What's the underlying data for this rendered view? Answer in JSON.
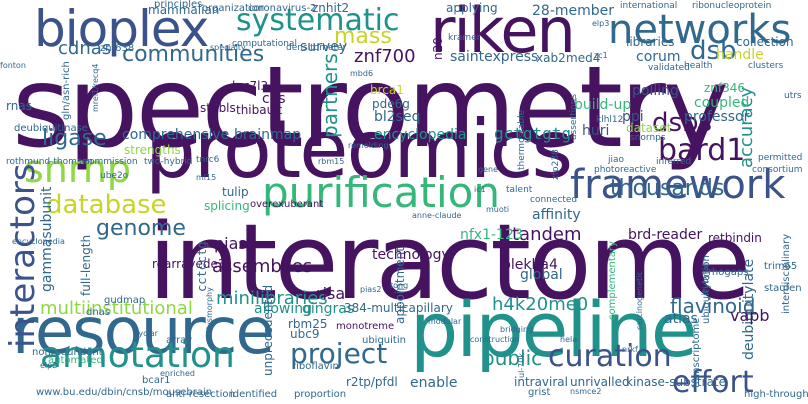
{
  "colors": {
    "purple": "#45135f",
    "indigo": "#3b528b",
    "blue": "#31688e",
    "teal": "#21918c",
    "green": "#35b779",
    "lime": "#8fd744",
    "yellow": "#c8d42a",
    "light": "#9bd69c"
  },
  "words": [
    {
      "text": "spectrometry"
    },
    {
      "text": "interactome"
    },
    {
      "text": "proteomics"
    },
    {
      "text": "pipeline"
    },
    {
      "text": "resource"
    },
    {
      "text": "riken"
    },
    {
      "text": "bioplex"
    },
    {
      "text": "purification"
    },
    {
      "text": "framework"
    },
    {
      "text": "networks"
    },
    {
      "text": "annotation"
    },
    {
      "text": "systematic"
    },
    {
      "text": "snrnp"
    },
    {
      "text": "curation"
    },
    {
      "text": "effort"
    },
    {
      "text": "interactors"
    },
    {
      "text": "bard1"
    },
    {
      "text": "dsbs"
    },
    {
      "text": "dsb"
    },
    {
      "text": "project"
    },
    {
      "text": "thousands"
    },
    {
      "text": "database"
    },
    {
      "text": "genome"
    },
    {
      "text": "communities"
    },
    {
      "text": "mass"
    },
    {
      "text": "accuracy"
    },
    {
      "text": "assemblies"
    },
    {
      "text": "ligase"
    },
    {
      "text": "cdnas"
    },
    {
      "text": "multiinstitutional"
    },
    {
      "text": "minilibraries"
    },
    {
      "text": "h4k20me0"
    },
    {
      "text": "flavinoid"
    },
    {
      "text": "public"
    },
    {
      "text": "deubiquitylate"
    },
    {
      "text": "tandem"
    },
    {
      "text": "technology"
    },
    {
      "text": "rearrayede3"
    },
    {
      "text": "pias3"
    },
    {
      "text": "partners"
    },
    {
      "text": "encyclopedia"
    },
    {
      "text": "gctgtgtg"
    },
    {
      "text": "bl2seq"
    },
    {
      "text": "znf700"
    },
    {
      "text": "survey"
    },
    {
      "text": "28-member"
    },
    {
      "text": "comprehensive"
    },
    {
      "text": "brainmap"
    },
    {
      "text": "build-up"
    },
    {
      "text": "huri"
    },
    {
      "text": "ppi"
    },
    {
      "text": "coupled"
    },
    {
      "text": "professor"
    },
    {
      "text": "dataset"
    },
    {
      "text": "polling"
    },
    {
      "text": "znf346"
    },
    {
      "text": "corum"
    },
    {
      "text": "handle"
    },
    {
      "text": "saintexpress"
    },
    {
      "text": "xab2"
    },
    {
      "text": "med4"
    },
    {
      "text": "libraries"
    },
    {
      "text": "collection"
    },
    {
      "text": "znhit2"
    },
    {
      "text": "applying"
    },
    {
      "text": "mammalian"
    },
    {
      "text": "cas"
    },
    {
      "text": "thibault"
    },
    {
      "text": "luc7l3"
    },
    {
      "text": "stubls"
    },
    {
      "text": "rnas"
    },
    {
      "text": "brca1"
    },
    {
      "text": "pde6g"
    },
    {
      "text": "gln/asn-rich"
    },
    {
      "text": "znf638"
    },
    {
      "text": "deubiquitinase"
    },
    {
      "text": "strengths"
    },
    {
      "text": "tulip"
    },
    {
      "text": "splicing"
    },
    {
      "text": "overexuberant"
    },
    {
      "text": "nfx1-123"
    },
    {
      "text": "brd-reader"
    },
    {
      "text": "retbindin"
    },
    {
      "text": "affinity"
    },
    {
      "text": "plekha4"
    },
    {
      "text": "risa"
    },
    {
      "text": "gingras"
    },
    {
      "text": "allowing"
    },
    {
      "text": "384-multicapillary"
    },
    {
      "text": "rbm25"
    },
    {
      "text": "ubc9"
    },
    {
      "text": "unprecedented"
    },
    {
      "text": "r2tp/pfdl"
    },
    {
      "text": "enable"
    },
    {
      "text": "intraviral"
    },
    {
      "text": "unrivalled"
    },
    {
      "text": "kinase-substrate"
    },
    {
      "text": "vapb"
    },
    {
      "text": "atlas"
    },
    {
      "text": "global"
    },
    {
      "text": "appointment"
    },
    {
      "text": "full-length"
    },
    {
      "text": "gammasubunit"
    },
    {
      "text": "cctcctg"
    },
    {
      "text": "monotreme"
    },
    {
      "text": "complementary"
    },
    {
      "text": "ubiquitin"
    },
    {
      "text": "n20"
    },
    {
      "text": "rhogaps"
    },
    {
      "text": "trim65"
    },
    {
      "text": "staufen"
    },
    {
      "text": "dnas"
    },
    {
      "text": "gudmap"
    },
    {
      "text": "array"
    },
    {
      "text": "nonredundant"
    },
    {
      "text": "automated"
    },
    {
      "text": "www.bu.edu/dbin/cnsb/mousebrain"
    },
    {
      "text": "bcar1"
    },
    {
      "text": "anti-resection"
    },
    {
      "text": "identified"
    },
    {
      "text": "proportion"
    },
    {
      "text": "riboflavin"
    },
    {
      "text": "grist"
    },
    {
      "text": "transcriptome"
    },
    {
      "text": "high-throughput"
    },
    {
      "text": "ubiquitylation"
    },
    {
      "text": "interdisciplinary"
    },
    {
      "text": "coronavirus-2"
    },
    {
      "text": "organization"
    },
    {
      "text": "principles"
    },
    {
      "text": "computational"
    },
    {
      "text": "densitometer"
    },
    {
      "text": "kramer"
    },
    {
      "text": "international"
    },
    {
      "text": "ribonucleoprotein"
    },
    {
      "text": "clusters"
    },
    {
      "text": "validated"
    },
    {
      "text": "health"
    },
    {
      "text": "utrs"
    },
    {
      "text": "assertions"
    },
    {
      "text": "snornps"
    },
    {
      "text": "jiao"
    },
    {
      "text": "photoreactive"
    },
    {
      "text": "inferred"
    },
    {
      "text": "permitted"
    },
    {
      "text": "consortium"
    },
    {
      "text": "talent"
    },
    {
      "text": "connected"
    },
    {
      "text": "thermostable"
    },
    {
      "text": "zfp238"
    },
    {
      "text": "klhl12"
    },
    {
      "text": "tnrc6"
    },
    {
      "text": "rothmund-thomson"
    },
    {
      "text": "commission"
    },
    {
      "text": "two-hybrid"
    },
    {
      "text": "ube2o"
    },
    {
      "text": "encyclopedia"
    },
    {
      "text": "elp2"
    },
    {
      "text": "elp3"
    },
    {
      "text": "ml15"
    },
    {
      "text": "remolding"
    },
    {
      "text": "fonton"
    },
    {
      "text": "mrel1/recq4"
    },
    {
      "text": "nrkf"
    },
    {
      "text": "hela"
    },
    {
      "text": "construction"
    },
    {
      "text": "bridging"
    },
    {
      "text": "modular"
    },
    {
      "text": "tong"
    },
    {
      "text": "dysmorphy"
    },
    {
      "text": "pias2"
    },
    {
      "text": "cyclar"
    },
    {
      "text": "enriched"
    },
    {
      "text": "ul-70k"
    },
    {
      "text": "nsmce2"
    },
    {
      "text": "all-by-all"
    },
    {
      "text": "carcinogenetic"
    },
    {
      "text": "anne-claude"
    },
    {
      "text": "specialty"
    },
    {
      "text": "gene"
    },
    {
      "text": "ic1"
    },
    {
      "text": "zc1"
    },
    {
      "text": "mbd6"
    },
    {
      "text": "rbm15"
    },
    {
      "text": "muoti"
    }
  ]
}
